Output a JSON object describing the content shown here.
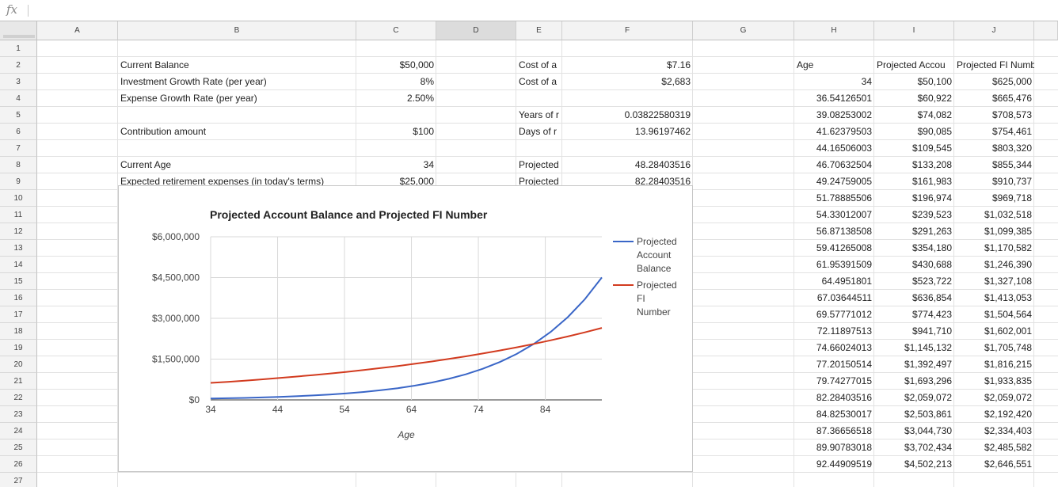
{
  "formula_bar": {
    "fx_label": "fx"
  },
  "columns": [
    "A",
    "B",
    "C",
    "D",
    "E",
    "F",
    "G",
    "H",
    "I",
    "J"
  ],
  "rows": [
    "1",
    "2",
    "3",
    "4",
    "5",
    "6",
    "7",
    "8",
    "9",
    "10",
    "11",
    "12",
    "13",
    "14",
    "15",
    "16",
    "17",
    "18",
    "19",
    "20",
    "21",
    "22",
    "23",
    "24",
    "25",
    "26",
    "27"
  ],
  "inputs": {
    "current_balance_label": "Current Balance",
    "current_balance_value": "$50,000",
    "growth_rate_label": "Investment Growth Rate (per year)",
    "growth_rate_value": "8%",
    "expense_growth_label": "Expense Growth Rate (per year)",
    "expense_growth_value": "2.50%",
    "contribution_label": "Contribution amount",
    "contribution_value": "$100",
    "current_age_label": "Current Age",
    "current_age_value": "34",
    "retirement_expenses_label": "Expected retirement expenses (in today's terms)",
    "retirement_expenses_value": "$25,000"
  },
  "results": {
    "cost1_label": "Cost of a",
    "cost1_value": "$7.16",
    "cost2_label": "Cost of a",
    "cost2_value": "$2,683",
    "years_label": "Years of r",
    "years_value": "0.03822580319",
    "days_label": "Days of r",
    "days_value": "13.96197462",
    "proj1_label": "Projected",
    "proj1_value": "48.28403516",
    "proj2_label": "Projected",
    "proj2_value": "82.28403516"
  },
  "table": {
    "headers": [
      "Age",
      "Projected Accou",
      "Projected FI Number"
    ],
    "rows": [
      [
        "34",
        "$50,100",
        "$625,000"
      ],
      [
        "36.54126501",
        "$60,922",
        "$665,476"
      ],
      [
        "39.08253002",
        "$74,082",
        "$708,573"
      ],
      [
        "41.62379503",
        "$90,085",
        "$754,461"
      ],
      [
        "44.16506003",
        "$109,545",
        "$803,320"
      ],
      [
        "46.70632504",
        "$133,208",
        "$855,344"
      ],
      [
        "49.24759005",
        "$161,983",
        "$910,737"
      ],
      [
        "51.78885506",
        "$196,974",
        "$969,718"
      ],
      [
        "54.33012007",
        "$239,523",
        "$1,032,518"
      ],
      [
        "56.87138508",
        "$291,263",
        "$1,099,385"
      ],
      [
        "59.41265008",
        "$354,180",
        "$1,170,582"
      ],
      [
        "61.95391509",
        "$430,688",
        "$1,246,390"
      ],
      [
        "64.4951801",
        "$523,722",
        "$1,327,108"
      ],
      [
        "67.03644511",
        "$636,854",
        "$1,413,053"
      ],
      [
        "69.57771012",
        "$774,423",
        "$1,504,564"
      ],
      [
        "72.11897513",
        "$941,710",
        "$1,602,001"
      ],
      [
        "74.66024013",
        "$1,145,132",
        "$1,705,748"
      ],
      [
        "77.20150514",
        "$1,392,497",
        "$1,816,215"
      ],
      [
        "79.74277015",
        "$1,693,296",
        "$1,933,835"
      ],
      [
        "82.28403516",
        "$2,059,072",
        "$2,059,072"
      ],
      [
        "84.82530017",
        "$2,503,861",
        "$2,192,420"
      ],
      [
        "87.36656518",
        "$3,044,730",
        "$2,334,403"
      ],
      [
        "89.90783018",
        "$3,702,434",
        "$2,485,582"
      ],
      [
        "92.44909519",
        "$4,502,213",
        "$2,646,551"
      ]
    ]
  },
  "chart_data": {
    "type": "line",
    "title": "Projected Account Balance and Projected FI Number",
    "xlabel": "Age",
    "ylabel": "",
    "xlim": [
      34,
      92.45
    ],
    "ylim": [
      0,
      6000000
    ],
    "x_ticks": [
      34,
      44,
      54,
      64,
      74,
      84
    ],
    "y_ticks": [
      0,
      1500000,
      3000000,
      4500000,
      6000000
    ],
    "y_tick_labels": [
      "$0",
      "$1,500,000",
      "$3,000,000",
      "$4,500,000",
      "$6,000,000"
    ],
    "grid": true,
    "legend": "right",
    "x": [
      34,
      36.54126501,
      39.08253002,
      41.62379503,
      44.16506003,
      46.70632504,
      49.24759005,
      51.78885506,
      54.33012007,
      56.87138508,
      59.41265008,
      61.95391509,
      64.4951801,
      67.03644511,
      69.57771012,
      72.11897513,
      74.66024013,
      77.20150514,
      79.74277015,
      82.28403516,
      84.82530017,
      87.36656518,
      89.90783018,
      92.44909519
    ],
    "series": [
      {
        "name": "Projected Account Balance",
        "color": "#3a66c7",
        "values": [
          50100,
          60922,
          74082,
          90085,
          109545,
          133208,
          161983,
          196974,
          239523,
          291263,
          354180,
          430688,
          523722,
          636854,
          774423,
          941710,
          1145132,
          1392497,
          1693296,
          2059072,
          2503861,
          3044730,
          3702434,
          4502213
        ]
      },
      {
        "name": "Projected FI Number",
        "color": "#d23b1f",
        "values": [
          625000,
          665476,
          708573,
          754461,
          803320,
          855344,
          910737,
          969718,
          1032518,
          1099385,
          1170582,
          1246390,
          1327108,
          1413053,
          1504564,
          1602001,
          1705748,
          1816215,
          1933835,
          2059072,
          2192420,
          2334403,
          2485582,
          2646551
        ]
      }
    ],
    "legend_labels": [
      [
        "Projected",
        "Account",
        "Balance"
      ],
      [
        "Projected",
        "FI",
        "Number"
      ]
    ]
  }
}
